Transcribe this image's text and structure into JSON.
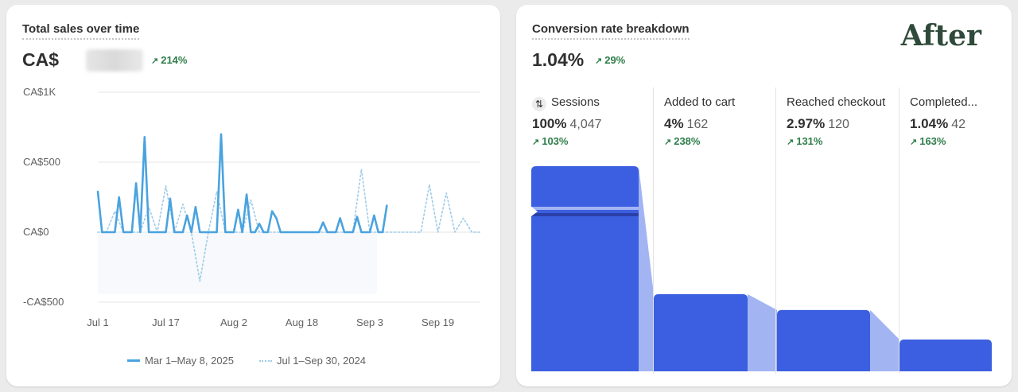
{
  "sales_card": {
    "title": "Total sales over time",
    "value_prefix": "CA$",
    "change": "214%",
    "change_icon": "arrow-up-right-icon",
    "legend": [
      {
        "label": "Mar 1–May 8, 2025",
        "style": "solid",
        "color": "#4aa3df"
      },
      {
        "label": "Jul 1–Sep 30, 2024",
        "style": "dotted",
        "color": "#9fcbe8"
      }
    ]
  },
  "conversion_card": {
    "title": "Conversion rate breakdown",
    "value": "1.04%",
    "change": "29%",
    "badge": "After",
    "steps": [
      {
        "label": "Sessions",
        "pct": "100%",
        "count": "4,047",
        "change": "103%",
        "rate": 1.0
      },
      {
        "label": "Added to cart",
        "pct": "4%",
        "count": "162",
        "change": "238%",
        "rate": 0.04
      },
      {
        "label": "Reached checkout",
        "pct": "2.97%",
        "count": "120",
        "change": "131%",
        "rate": 0.0297
      },
      {
        "label": "Completed...",
        "pct": "1.04%",
        "count": "42",
        "change": "163%",
        "rate": 0.0104
      }
    ],
    "colors": {
      "bar": "#3b5fe0",
      "connector": "#a3b4f3",
      "positive": "#2e7d4a"
    }
  },
  "chart_data": {
    "type": "line",
    "title": "Total sales over time",
    "xlabel": "",
    "ylabel": "",
    "x_ticks": [
      "Jul 1",
      "Jul 17",
      "Aug 2",
      "Aug 18",
      "Sep 3",
      "Sep 19"
    ],
    "y_ticks": [
      "CA$1K",
      "CA$500",
      "CA$0",
      "-CA$500"
    ],
    "ylim": [
      -500,
      1000
    ],
    "grid": true,
    "legend_position": "bottom",
    "series": [
      {
        "name": "Mar 1–May 8, 2025",
        "style": "solid",
        "color": "#4aa3df",
        "x": [
          0,
          1,
          2,
          3,
          4,
          5,
          6,
          7,
          8,
          9,
          10,
          11,
          12,
          13,
          14,
          15,
          16,
          17,
          18,
          19,
          20,
          21,
          22,
          23,
          24,
          25,
          26,
          27,
          28,
          29,
          30,
          31,
          32,
          33,
          34,
          35,
          36,
          37,
          38,
          39,
          40,
          41,
          42,
          43,
          44,
          45,
          46,
          47,
          48,
          49,
          50,
          51,
          52,
          53,
          54,
          55,
          56,
          57,
          58,
          59,
          60,
          61,
          62,
          63,
          64,
          65,
          66,
          67,
          68
        ],
        "y": [
          290,
          0,
          0,
          0,
          0,
          250,
          0,
          0,
          0,
          350,
          0,
          680,
          0,
          0,
          0,
          0,
          0,
          240,
          0,
          0,
          0,
          120,
          0,
          180,
          0,
          0,
          0,
          0,
          0,
          700,
          0,
          0,
          0,
          160,
          0,
          270,
          0,
          0,
          60,
          0,
          0,
          150,
          100,
          0,
          0,
          0,
          0,
          0,
          0,
          0,
          0,
          0,
          0,
          70,
          0,
          0,
          0,
          100,
          0,
          0,
          0,
          110,
          0,
          0,
          0,
          120,
          0,
          0,
          190
        ]
      },
      {
        "name": "Jul 1–Sep 30, 2024",
        "style": "dotted",
        "color": "#9fcbe8",
        "x": [
          0,
          2,
          4,
          6,
          8,
          10,
          12,
          14,
          16,
          18,
          20,
          22,
          24,
          26,
          28,
          30,
          32,
          34,
          36,
          38,
          40,
          42,
          44,
          46,
          48,
          50,
          52,
          54,
          56,
          58,
          60,
          62,
          64,
          66,
          68,
          70,
          72,
          74,
          76,
          78,
          80,
          82,
          84,
          86,
          88,
          90
        ],
        "y": [
          0,
          0,
          150,
          0,
          0,
          0,
          180,
          0,
          330,
          0,
          200,
          0,
          -350,
          0,
          290,
          0,
          0,
          0,
          230,
          0,
          0,
          0,
          0,
          0,
          0,
          0,
          0,
          0,
          0,
          0,
          0,
          450,
          0,
          0,
          0,
          0,
          0,
          0,
          0,
          340,
          0,
          280,
          0,
          100,
          0,
          0
        ]
      }
    ]
  }
}
